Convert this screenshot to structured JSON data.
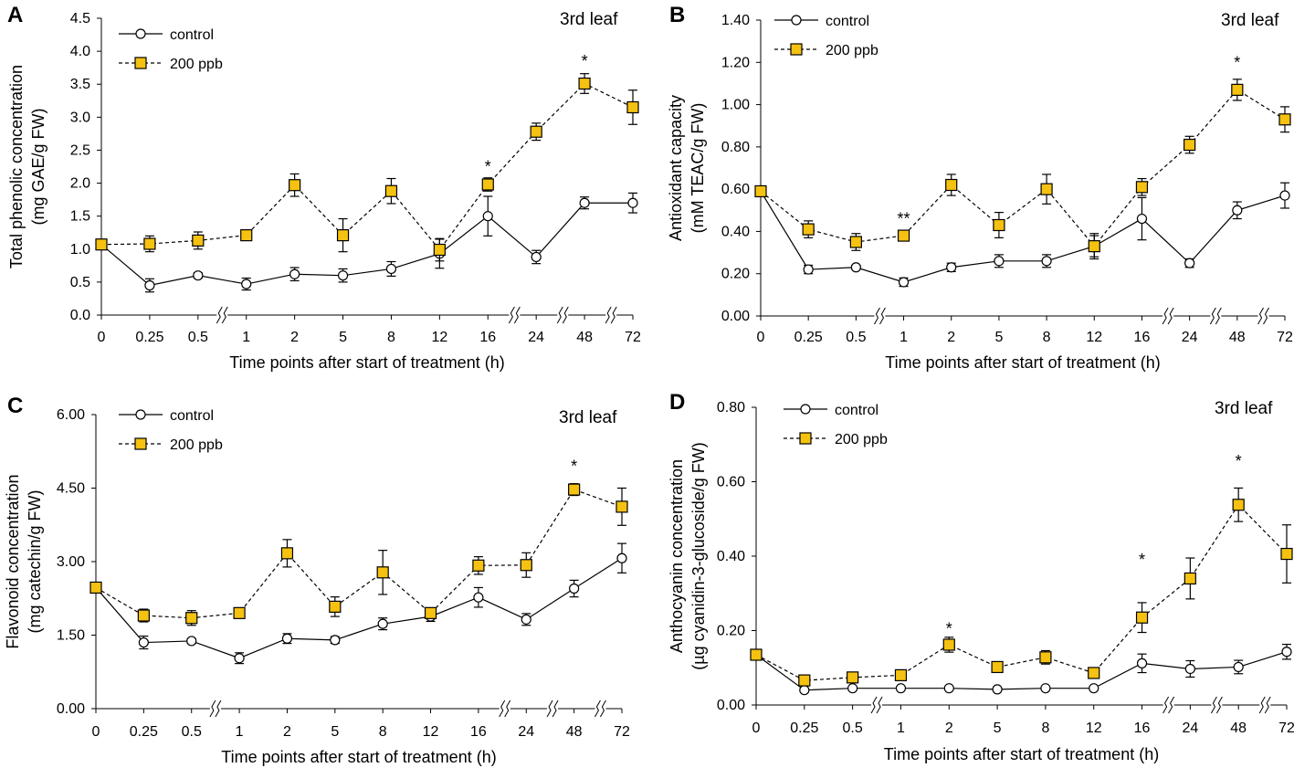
{
  "figure": {
    "charts_count": 4
  },
  "chart_data": [
    {
      "panel": "A",
      "type": "line",
      "annotation": "3rd leaf",
      "xlabel": "Time points after start of treatment (h)",
      "ylabel": [
        "Total phenolic concentration",
        "(mg GAE/g FW)"
      ],
      "categories": [
        "0",
        "0.25",
        "0.5",
        "1",
        "2",
        "5",
        "8",
        "12",
        "16",
        "24",
        "48",
        "72"
      ],
      "axis_breaks_after": [
        "0.5",
        "16",
        "24",
        "48"
      ],
      "ylim": [
        0,
        4.5
      ],
      "yticks": [
        "0.0",
        "0.5",
        "1.0",
        "1.5",
        "2.0",
        "2.5",
        "3.0",
        "3.5",
        "4.0",
        "4.5"
      ],
      "legend": [
        "control",
        "200 ppb"
      ],
      "series": [
        {
          "name": "control",
          "marker": "circle",
          "line": "solid",
          "values": [
            1.07,
            0.45,
            0.6,
            0.47,
            0.62,
            0.6,
            0.7,
            0.93,
            1.5,
            0.88,
            1.7,
            1.7
          ],
          "errors": [
            0.05,
            0.1,
            0.04,
            0.09,
            0.1,
            0.1,
            0.11,
            0.22,
            0.3,
            0.1,
            0.09,
            0.15
          ]
        },
        {
          "name": "200 ppb",
          "marker": "square",
          "line": "dashed",
          "values": [
            1.07,
            1.08,
            1.13,
            1.21,
            1.97,
            1.21,
            1.88,
            0.99,
            1.98,
            2.78,
            3.51,
            3.15
          ],
          "errors": [
            0.05,
            0.12,
            0.13,
            0.05,
            0.17,
            0.25,
            0.19,
            0.17,
            0.1,
            0.13,
            0.15,
            0.26
          ]
        }
      ],
      "significance": [
        {
          "category": "16",
          "label": "*",
          "y": 2.25
        },
        {
          "category": "48",
          "label": "*",
          "y": 3.85
        }
      ]
    },
    {
      "panel": "B",
      "type": "line",
      "annotation": "3rd leaf",
      "xlabel": "Time points after start of treatment (h)",
      "ylabel": [
        "Antioxidant capacity",
        "(mM TEAC/g FW)"
      ],
      "categories": [
        "0",
        "0.25",
        "0.5",
        "1",
        "2",
        "5",
        "8",
        "12",
        "16",
        "24",
        "48",
        "72"
      ],
      "axis_breaks_after": [
        "0.5",
        "16",
        "24",
        "48"
      ],
      "ylim": [
        0,
        1.4
      ],
      "yticks": [
        "0.00",
        "0.20",
        "0.40",
        "0.60",
        "0.80",
        "1.00",
        "1.20",
        "1.40"
      ],
      "legend": [
        "control",
        "200 ppb"
      ],
      "series": [
        {
          "name": "control",
          "marker": "circle",
          "line": "solid",
          "values": [
            0.59,
            0.22,
            0.23,
            0.16,
            0.23,
            0.26,
            0.26,
            0.33,
            0.46,
            0.25,
            0.5,
            0.57
          ],
          "errors": [
            0.02,
            0.02,
            0.01,
            0.02,
            0.02,
            0.03,
            0.03,
            0.06,
            0.1,
            0.02,
            0.04,
            0.06
          ]
        },
        {
          "name": "200 ppb",
          "marker": "square",
          "line": "dashed",
          "values": [
            0.59,
            0.41,
            0.35,
            0.38,
            0.62,
            0.43,
            0.6,
            0.33,
            0.61,
            0.81,
            1.07,
            0.93
          ],
          "errors": [
            0.02,
            0.04,
            0.04,
            0.01,
            0.05,
            0.06,
            0.07,
            0.05,
            0.04,
            0.04,
            0.05,
            0.06
          ]
        }
      ],
      "significance": [
        {
          "category": "1",
          "label": "**",
          "y": 0.46
        },
        {
          "category": "48",
          "label": "*",
          "y": 1.2
        }
      ]
    },
    {
      "panel": "C",
      "type": "line",
      "annotation": "3rd leaf",
      "xlabel": "Time points after start of treatment (h)",
      "ylabel": [
        "Flavonoid concentration",
        "(mg catechin/g FW)"
      ],
      "categories": [
        "0",
        "0.25",
        "0.5",
        "1",
        "2",
        "5",
        "8",
        "12",
        "16",
        "24",
        "48",
        "72"
      ],
      "axis_breaks_after": [
        "0.5",
        "16",
        "24",
        "48"
      ],
      "ylim": [
        0,
        6
      ],
      "yticks": [
        "0.00",
        "1.50",
        "3.00",
        "4.50",
        "6.00"
      ],
      "legend": [
        "control",
        "200 ppb"
      ],
      "series": [
        {
          "name": "control",
          "marker": "circle",
          "line": "solid",
          "values": [
            2.47,
            1.35,
            1.38,
            1.03,
            1.43,
            1.4,
            1.73,
            1.88,
            2.27,
            1.82,
            2.45,
            3.07
          ],
          "errors": [
            0.05,
            0.13,
            0.05,
            0.11,
            0.1,
            0.07,
            0.12,
            0.1,
            0.2,
            0.12,
            0.17,
            0.3
          ]
        },
        {
          "name": "200 ppb",
          "marker": "square",
          "line": "dashed",
          "values": [
            2.47,
            1.9,
            1.85,
            1.95,
            3.17,
            2.08,
            2.78,
            1.95,
            2.92,
            2.93,
            4.47,
            4.12
          ],
          "errors": [
            0.05,
            0.13,
            0.15,
            0.05,
            0.28,
            0.2,
            0.45,
            0.1,
            0.18,
            0.25,
            0.12,
            0.38
          ]
        }
      ],
      "significance": [
        {
          "category": "48",
          "label": "*",
          "y": 4.95
        }
      ]
    },
    {
      "panel": "D",
      "type": "line",
      "annotation": "3rd leaf",
      "xlabel": "Time points after start of treatment (h)",
      "ylabel": [
        "Anthocyanin concentration",
        "(µg cyanidin-3-glucoside/g FW)"
      ],
      "categories": [
        "0",
        "0.25",
        "0.5",
        "1",
        "2",
        "5",
        "8",
        "12",
        "16",
        "24",
        "48",
        "72"
      ],
      "axis_breaks_after": [
        "0.5",
        "16",
        "24",
        "48"
      ],
      "ylim": [
        0,
        0.8
      ],
      "yticks": [
        "0.00",
        "0.20",
        "0.40",
        "0.60",
        "0.80"
      ],
      "legend": [
        "control",
        "200 ppb"
      ],
      "series": [
        {
          "name": "control",
          "marker": "circle",
          "line": "solid",
          "values": [
            0.135,
            0.04,
            0.045,
            0.045,
            0.045,
            0.042,
            0.045,
            0.045,
            0.112,
            0.097,
            0.102,
            0.143
          ],
          "errors": [
            0.005,
            0.004,
            0.003,
            0.004,
            0.004,
            0.003,
            0.004,
            0.004,
            0.025,
            0.022,
            0.018,
            0.02
          ]
        },
        {
          "name": "200 ppb",
          "marker": "square",
          "line": "dashed",
          "values": [
            0.135,
            0.066,
            0.074,
            0.08,
            0.162,
            0.102,
            0.128,
            0.086,
            0.235,
            0.34,
            0.538,
            0.406
          ],
          "errors": [
            0.005,
            0.01,
            0.008,
            0.008,
            0.02,
            0.012,
            0.018,
            0.008,
            0.04,
            0.055,
            0.045,
            0.078
          ]
        }
      ],
      "significance": [
        {
          "category": "2",
          "label": "*",
          "y": 0.205
        },
        {
          "category": "16",
          "label": "*",
          "y": 0.39
        },
        {
          "category": "48",
          "label": "*",
          "y": 0.655
        }
      ]
    }
  ],
  "colors": {
    "axis": "#000000",
    "control_line": "#000000",
    "control_marker_fill": "#ffffff",
    "treatment_line": "#000000",
    "treatment_marker_fill": "#F5C211",
    "treatment_marker_edge": "#000000"
  }
}
